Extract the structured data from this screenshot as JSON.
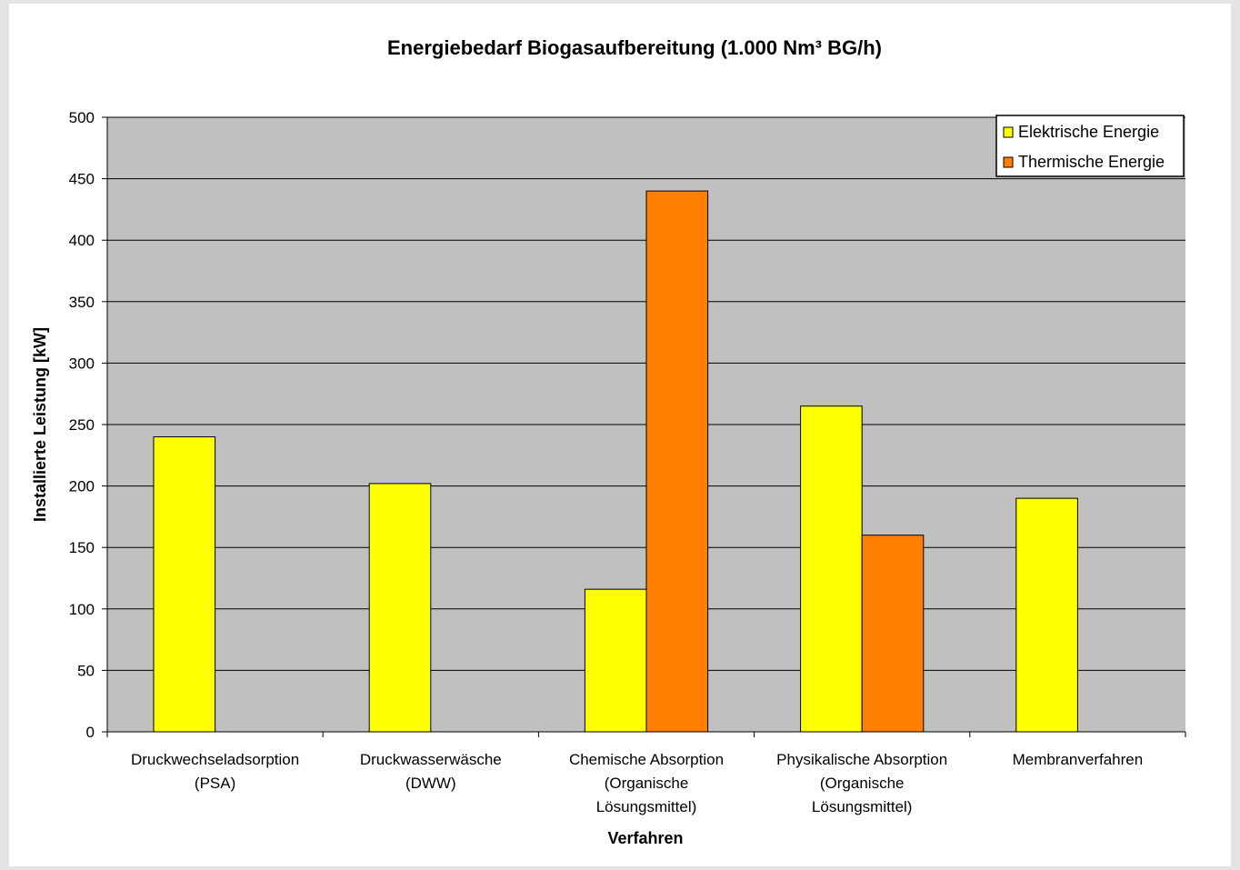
{
  "chart_data": {
    "type": "bar",
    "title": "Energiebedarf Biogasaufbereitung (1.000 Nm³ BG/h)",
    "xlabel": "Verfahren",
    "ylabel": "Installierte Leistung [kW]",
    "ylim": [
      0,
      500
    ],
    "yticks": [
      0,
      50,
      100,
      150,
      200,
      250,
      300,
      350,
      400,
      450,
      500
    ],
    "grid": true,
    "legend_position": "top-right",
    "categories": [
      [
        "Druckwechseladsorption",
        "(PSA)"
      ],
      [
        "Druckwasserwäsche",
        "(DWW)"
      ],
      [
        "Chemische Absorption",
        "(Organische",
        "Lösungsmittel)"
      ],
      [
        "Physikalische Absorption",
        "(Organische",
        "Lösungsmittel)"
      ],
      [
        "Membranverfahren"
      ]
    ],
    "series": [
      {
        "name": "Elektrische Energie",
        "color": "#ffff00",
        "values": [
          240,
          202,
          116,
          265,
          190
        ]
      },
      {
        "name": "Thermische Energie",
        "color": "#ff7f00",
        "values": [
          null,
          null,
          440,
          160,
          null
        ]
      }
    ],
    "plot_background": "#c0c0c0"
  }
}
